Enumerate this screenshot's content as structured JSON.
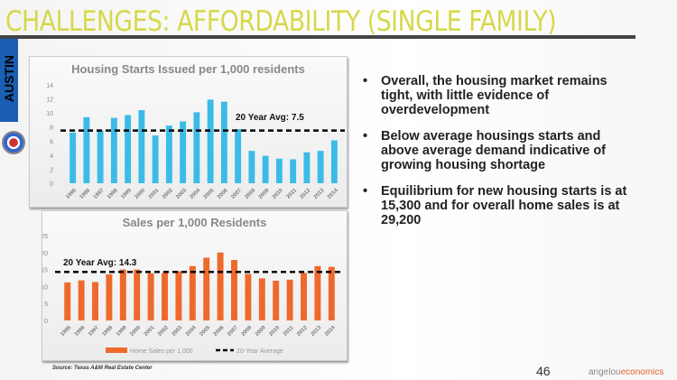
{
  "title": "CHALLENGES: AFFORDABILITY (SINGLE FAMILY)",
  "side_label": "AUSTIN",
  "bullets": [
    "Overall, the housing market remains tight, with little evidence of overdevelopment",
    "Below average housings starts and above average demand indicative of growing housing shortage",
    "Equilibrium for new housing starts is at 15,300 and for overall home sales is at 29,200"
  ],
  "source": "Source: Texas A&M Real Estate Center",
  "page_number": "46",
  "logo": {
    "part1": "angelou",
    "part2": "economics"
  },
  "chart_data": [
    {
      "type": "bar",
      "title": "Housing Starts Issued per 1,000 residents",
      "color": "#3bbbe8",
      "categories": [
        "1995",
        "1996",
        "1997",
        "1998",
        "1999",
        "2000",
        "2001",
        "2002",
        "2003",
        "2004",
        "2005",
        "2006",
        "2007",
        "2008",
        "2009",
        "2010",
        "2011",
        "2012",
        "2013",
        "2014"
      ],
      "values": [
        7.2,
        9.4,
        7.5,
        9.3,
        9.7,
        10.4,
        6.8,
        8.2,
        8.8,
        10.1,
        11.9,
        11.6,
        7.7,
        4.6,
        3.9,
        3.5,
        3.4,
        4.4,
        4.6,
        6.1
      ],
      "ylim": [
        0,
        14
      ],
      "yticks": [
        0,
        2,
        4,
        6,
        8,
        10,
        12,
        14
      ],
      "average": 7.5,
      "average_label": "20 Year Avg: 7.5"
    },
    {
      "type": "bar",
      "title": "Sales per 1,000 Residents",
      "color": "#ee6a2c",
      "categories": [
        "1995",
        "1996",
        "1997",
        "1998",
        "1999",
        "2000",
        "2001",
        "2002",
        "2003",
        "2004",
        "2005",
        "2006",
        "2007",
        "2008",
        "2009",
        "2010",
        "2011",
        "2012",
        "2013",
        "2014"
      ],
      "values": [
        11.2,
        11.8,
        11.3,
        13.6,
        15,
        15,
        13.9,
        14,
        14.5,
        16,
        18.5,
        20,
        17.8,
        13.7,
        12.4,
        11.7,
        12,
        14,
        16,
        15.8
      ],
      "ylim": [
        0,
        25
      ],
      "yticks": [
        0,
        5,
        10,
        15,
        20,
        25
      ],
      "average": 14.3,
      "average_label": "20 Year Avg: 14.3",
      "legend": [
        "Home Sales per 1,000",
        "20-Year Average"
      ],
      "legend_position": "bottom"
    }
  ]
}
